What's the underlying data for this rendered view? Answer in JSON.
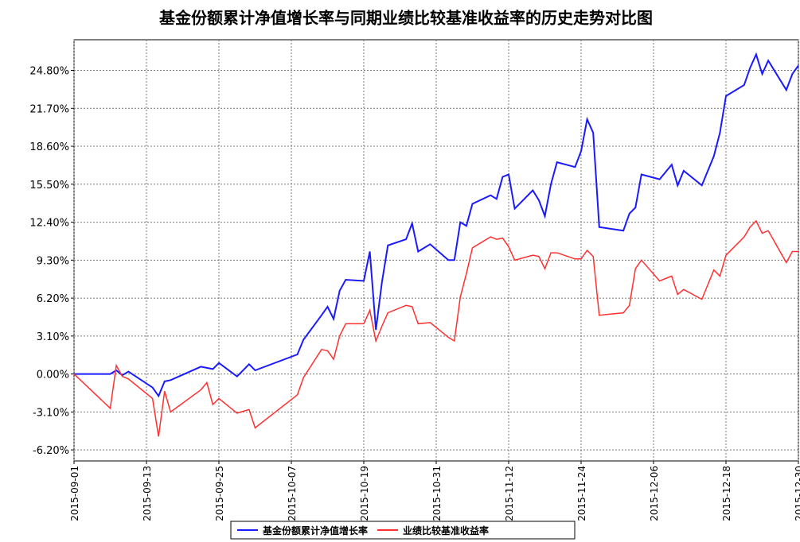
{
  "chart_data": {
    "type": "line",
    "title": "基金份额累计净值增长率与同期业绩比较基准收益率的历史走势对比图",
    "x": [
      "2015-09-01",
      "2015-09-07",
      "2015-09-08",
      "2015-09-09",
      "2015-09-10",
      "2015-09-14",
      "2015-09-15",
      "2015-09-16",
      "2015-09-17",
      "2015-09-22",
      "2015-09-23",
      "2015-09-24",
      "2015-09-25",
      "2015-09-28",
      "2015-09-30",
      "2015-10-01",
      "2015-10-08",
      "2015-10-09",
      "2015-10-12",
      "2015-10-13",
      "2015-10-14",
      "2015-10-15",
      "2015-10-16",
      "2015-10-19",
      "2015-10-20",
      "2015-10-21",
      "2015-10-22",
      "2015-10-23",
      "2015-10-26",
      "2015-10-27",
      "2015-10-28",
      "2015-10-30",
      "2015-11-02",
      "2015-11-03",
      "2015-11-04",
      "2015-11-05",
      "2015-11-06",
      "2015-11-09",
      "2015-11-10",
      "2015-11-11",
      "2015-11-12",
      "2015-11-13",
      "2015-11-16",
      "2015-11-17",
      "2015-11-18",
      "2015-11-19",
      "2015-11-20",
      "2015-11-23",
      "2015-11-24",
      "2015-11-25",
      "2015-11-26",
      "2015-11-27",
      "2015-12-01",
      "2015-12-02",
      "2015-12-03",
      "2015-12-04",
      "2015-12-07",
      "2015-12-09",
      "2015-12-10",
      "2015-12-11",
      "2015-12-14",
      "2015-12-16",
      "2015-12-17",
      "2015-12-18",
      "2015-12-21",
      "2015-12-22",
      "2015-12-23",
      "2015-12-24",
      "2015-12-25",
      "2015-12-28",
      "2015-12-29",
      "2015-12-30"
    ],
    "series": [
      {
        "name": "基金份额累计净值增长率",
        "color": "#1a1aff",
        "values": [
          0,
          0,
          0.3,
          -0.1,
          0.2,
          -1.1,
          -1.8,
          -0.6,
          -0.5,
          0.6,
          0.5,
          0.4,
          0.9,
          -0.2,
          0.8,
          0.3,
          1.6,
          2.8,
          4.8,
          5.5,
          4.5,
          6.8,
          7.7,
          7.6,
          10.0,
          3.6,
          7.5,
          10.5,
          11.0,
          12.3,
          10.0,
          10.6,
          9.3,
          9.3,
          12.4,
          12.1,
          13.9,
          14.6,
          14.3,
          16.1,
          16.3,
          13.5,
          15.0,
          14.2,
          12.9,
          15.5,
          17.3,
          16.9,
          18.2,
          20.8,
          19.7,
          12.0,
          11.7,
          13.1,
          13.6,
          16.3,
          15.9,
          17.1,
          15.4,
          16.6,
          15.4,
          17.8,
          19.7,
          22.7,
          23.6,
          25.0,
          26.1,
          24.5,
          25.6,
          23.2,
          24.5,
          25.2
        ]
      },
      {
        "name": "业绩比较基准收益率",
        "color": "#ff3030",
        "values": [
          0,
          -2.8,
          0.7,
          -0.2,
          -0.4,
          -2.0,
          -5.1,
          -1.4,
          -3.1,
          -1.3,
          -0.7,
          -2.5,
          -2.0,
          -3.2,
          -2.9,
          -4.4,
          -1.7,
          -0.3,
          2.0,
          1.9,
          1.2,
          3.1,
          4.1,
          4.1,
          5.2,
          2.7,
          3.9,
          5.0,
          5.6,
          5.5,
          4.1,
          4.2,
          3.0,
          2.7,
          6.3,
          8.2,
          10.3,
          11.2,
          11.0,
          11.1,
          10.4,
          9.3,
          9.7,
          9.6,
          8.6,
          9.9,
          9.9,
          9.4,
          9.4,
          10.1,
          9.6,
          4.8,
          5.0,
          5.6,
          8.6,
          9.3,
          7.6,
          8.0,
          6.5,
          6.9,
          6.1,
          8.5,
          8.0,
          9.7,
          11.2,
          12.0,
          12.5,
          11.5,
          11.7,
          9.1,
          10.0,
          10.0
        ]
      }
    ],
    "xlim": [
      "2015-09-01",
      "2015-12-30"
    ],
    "xticks": [
      "2015-09-01",
      "2015-09-13",
      "2015-09-25",
      "2015-10-07",
      "2015-10-19",
      "2015-10-31",
      "2015-11-12",
      "2015-11-24",
      "2015-12-06",
      "2015-12-18",
      "2015-12-30"
    ],
    "ylim": [
      -7.1,
      27.3
    ],
    "yticks": [
      {
        "value": -6.2,
        "label": "-6.20%"
      },
      {
        "value": -3.1,
        "label": "-3.10%"
      },
      {
        "value": 0,
        "label": "0.00%"
      },
      {
        "value": 3.1,
        "label": "3.10%"
      },
      {
        "value": 6.2,
        "label": "6.20%"
      },
      {
        "value": 9.3,
        "label": "9.30%"
      },
      {
        "value": 12.4,
        "label": "12.40%"
      },
      {
        "value": 15.5,
        "label": "15.50%"
      },
      {
        "value": 18.6,
        "label": "18.60%"
      },
      {
        "value": 21.7,
        "label": "21.70%"
      },
      {
        "value": 24.8,
        "label": "24.80%"
      }
    ],
    "grid": true
  }
}
